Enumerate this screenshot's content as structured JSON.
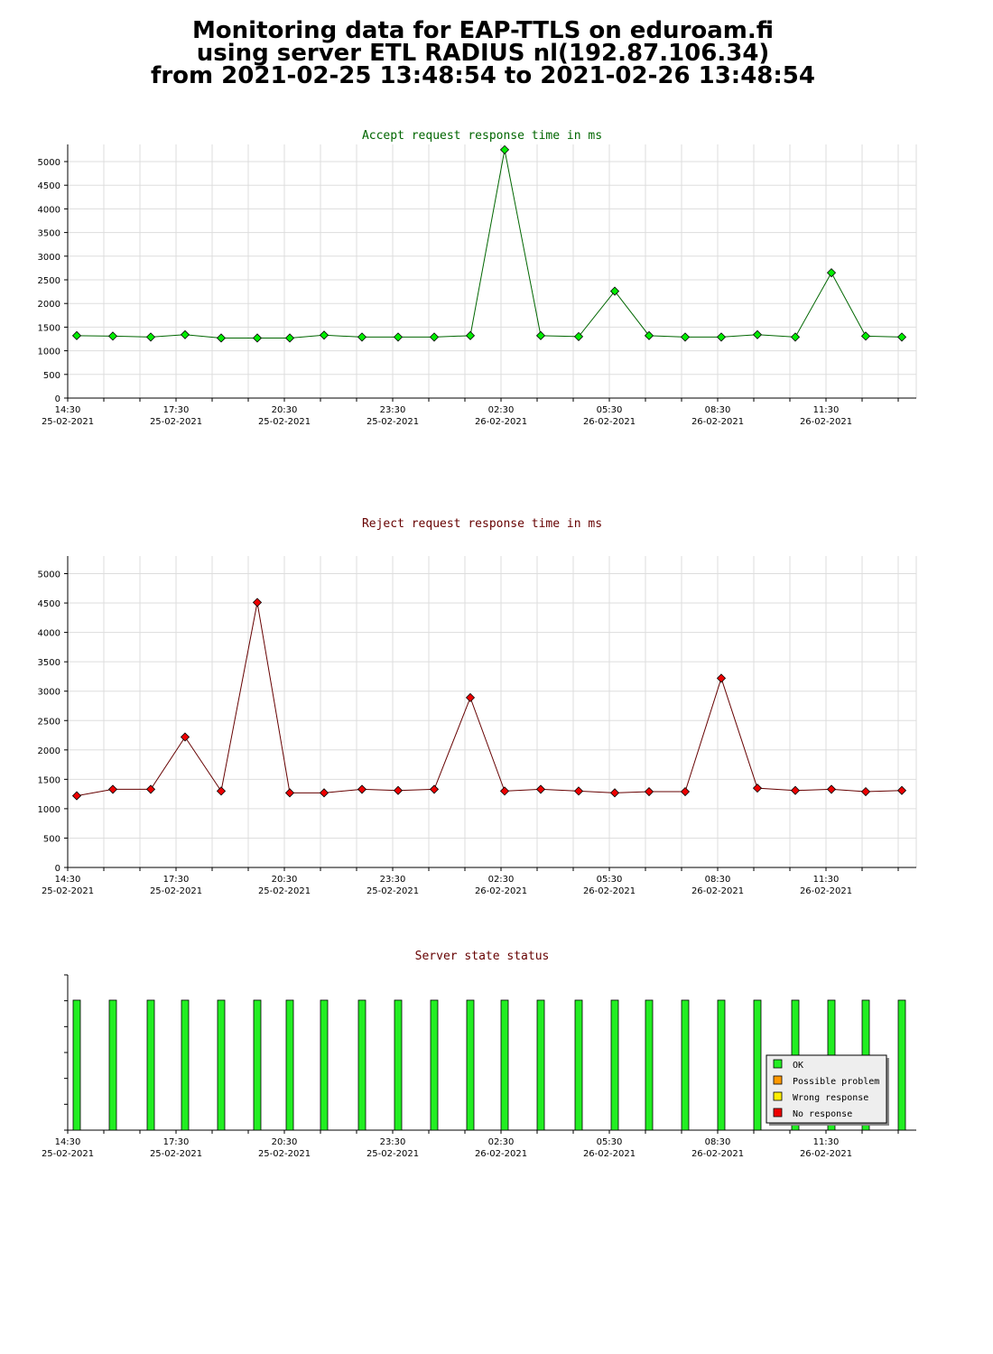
{
  "page": {
    "title_lines": [
      "Monitoring data for EAP-TTLS on eduroam.fi",
      "using server ETL RADIUS nl(192.87.106.34)",
      "from 2021-02-25 13:48:54 to 2021-02-26 13:48:54"
    ]
  },
  "colors": {
    "accept_title": "#006600",
    "reject_title": "#660000",
    "status_title": "#660000",
    "accept_marker": "#00ee00",
    "accept_line": "#006600",
    "reject_marker": "#ee0000",
    "reject_line": "#660000",
    "status_bar": "#22ee22",
    "grid": "#dddddd"
  },
  "chart_data": [
    {
      "type": "line",
      "title": "Accept request response time in ms",
      "x_tick_labels": [
        [
          "14:30",
          "25-02-2021"
        ],
        [
          "17:30",
          "25-02-2021"
        ],
        [
          "20:30",
          "25-02-2021"
        ],
        [
          "23:30",
          "25-02-2021"
        ],
        [
          "02:30",
          "26-02-2021"
        ],
        [
          "05:30",
          "26-02-2021"
        ],
        [
          "08:30",
          "26-02-2021"
        ],
        [
          "11:30",
          "26-02-2021"
        ]
      ],
      "y_ticks": [
        0,
        500,
        1000,
        1500,
        2000,
        2500,
        3000,
        3500,
        4000,
        4500,
        5000
      ],
      "ylim": [
        0,
        5300
      ],
      "x_hours": [
        0.25,
        1.25,
        2.3,
        3.25,
        4.25,
        5.25,
        6.15,
        7.1,
        8.15,
        9.15,
        10.15,
        11.15,
        12.1,
        13.1,
        14.15,
        15.15,
        16.1,
        17.1,
        18.1,
        19.1,
        20.15,
        21.15,
        22.1,
        23.1
      ],
      "values": [
        1320,
        1310,
        1290,
        1340,
        1270,
        1270,
        1270,
        1330,
        1290,
        1290,
        1290,
        1320,
        5250,
        1320,
        1300,
        2260,
        1320,
        1290,
        1290,
        1340,
        1290,
        2650,
        1310,
        1290
      ],
      "grid": true
    },
    {
      "type": "line",
      "title": "Reject request response time in ms",
      "x_tick_labels": [
        [
          "14:30",
          "25-02-2021"
        ],
        [
          "17:30",
          "25-02-2021"
        ],
        [
          "20:30",
          "25-02-2021"
        ],
        [
          "23:30",
          "25-02-2021"
        ],
        [
          "02:30",
          "26-02-2021"
        ],
        [
          "05:30",
          "26-02-2021"
        ],
        [
          "08:30",
          "26-02-2021"
        ],
        [
          "11:30",
          "26-02-2021"
        ]
      ],
      "y_ticks": [
        0,
        500,
        1000,
        1500,
        2000,
        2500,
        3000,
        3500,
        4000,
        4500,
        5000
      ],
      "ylim": [
        0,
        5300
      ],
      "x_hours": [
        0.25,
        1.25,
        2.3,
        3.25,
        4.25,
        5.25,
        6.15,
        7.1,
        8.15,
        9.15,
        10.15,
        11.15,
        12.1,
        13.1,
        14.15,
        15.15,
        16.1,
        17.1,
        18.1,
        19.1,
        20.15,
        21.15,
        22.1,
        23.1
      ],
      "values": [
        1220,
        1330,
        1330,
        2220,
        1300,
        4510,
        1270,
        1270,
        1330,
        1310,
        1330,
        2890,
        1300,
        1330,
        1300,
        1270,
        1290,
        1290,
        3220,
        1350,
        1310,
        1330,
        1290,
        1310
      ],
      "grid": true
    },
    {
      "type": "bar",
      "title": "Server state status",
      "x_tick_labels": [
        [
          "14:30",
          "25-02-2021"
        ],
        [
          "17:30",
          "25-02-2021"
        ],
        [
          "20:30",
          "25-02-2021"
        ],
        [
          "23:30",
          "25-02-2021"
        ],
        [
          "02:30",
          "26-02-2021"
        ],
        [
          "05:30",
          "26-02-2021"
        ],
        [
          "08:30",
          "26-02-2021"
        ],
        [
          "11:30",
          "26-02-2021"
        ]
      ],
      "x_hours": [
        0.25,
        1.25,
        2.3,
        3.25,
        4.25,
        5.25,
        6.15,
        7.1,
        8.15,
        9.15,
        10.15,
        11.15,
        12.1,
        13.1,
        14.15,
        15.15,
        16.1,
        17.1,
        18.1,
        19.1,
        20.15,
        21.15,
        22.1,
        23.1
      ],
      "states": [
        "OK",
        "OK",
        "OK",
        "OK",
        "OK",
        "OK",
        "OK",
        "OK",
        "OK",
        "OK",
        "OK",
        "OK",
        "OK",
        "OK",
        "OK",
        "OK",
        "OK",
        "OK",
        "OK",
        "OK",
        "OK",
        "OK",
        "OK",
        "OK"
      ],
      "legend": [
        {
          "label": "OK",
          "color": "#22ee22"
        },
        {
          "label": "Possible problem",
          "color": "#ff9900"
        },
        {
          "label": "Wrong response",
          "color": "#ffee00"
        },
        {
          "label": "No response",
          "color": "#ee0000"
        }
      ],
      "legend_position": "bottom-right"
    }
  ]
}
